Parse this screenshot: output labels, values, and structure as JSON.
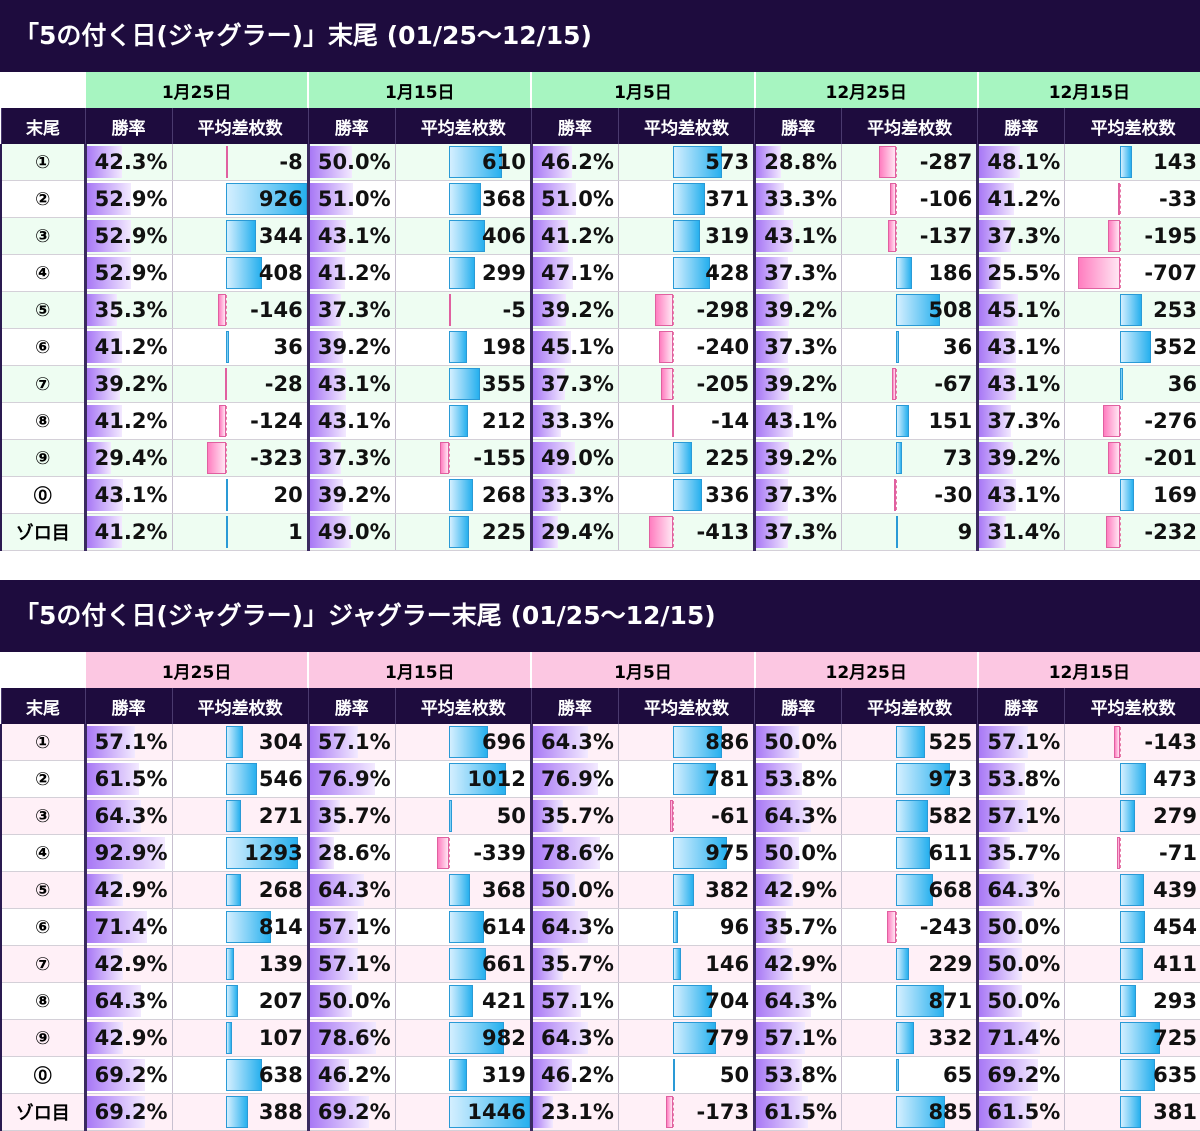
{
  "header_col": "末尾",
  "sub_headers": {
    "win": "勝率",
    "diff": "平均差枚数"
  },
  "rows": [
    "①",
    "②",
    "③",
    "④",
    "⑤",
    "⑥",
    "⑦",
    "⑧",
    "⑨",
    "⓪",
    "ゾロ目"
  ],
  "dates": [
    "1月25日",
    "1月15日",
    "1月5日",
    "12月25日",
    "12月15日"
  ],
  "colors": {
    "title_bg": "#1e0c3e",
    "date_green": "#a7f5c1",
    "date_pink": "#fcc7e2",
    "win_bar": "#a878f5",
    "pos_bar": "#27b0ee",
    "neg_bar": "#ff7ec0"
  },
  "tables": [
    {
      "title": "「5の付く日(ジャグラー)」末尾 (01/25～12/15)",
      "max_diff": 926,
      "data": [
        [
          [
            "42.3%",
            -8
          ],
          [
            "50.0%",
            610
          ],
          [
            "46.2%",
            573
          ],
          [
            "28.8%",
            -287
          ],
          [
            "48.1%",
            143
          ]
        ],
        [
          [
            "52.9%",
            926
          ],
          [
            "51.0%",
            368
          ],
          [
            "51.0%",
            371
          ],
          [
            "33.3%",
            -106
          ],
          [
            "41.2%",
            -33
          ]
        ],
        [
          [
            "52.9%",
            344
          ],
          [
            "43.1%",
            406
          ],
          [
            "41.2%",
            319
          ],
          [
            "43.1%",
            -137
          ],
          [
            "37.3%",
            -195
          ]
        ],
        [
          [
            "52.9%",
            408
          ],
          [
            "41.2%",
            299
          ],
          [
            "47.1%",
            428
          ],
          [
            "37.3%",
            186
          ],
          [
            "25.5%",
            -707
          ]
        ],
        [
          [
            "35.3%",
            -146
          ],
          [
            "37.3%",
            -5
          ],
          [
            "39.2%",
            -298
          ],
          [
            "39.2%",
            508
          ],
          [
            "45.1%",
            253
          ]
        ],
        [
          [
            "41.2%",
            36
          ],
          [
            "39.2%",
            198
          ],
          [
            "45.1%",
            -240
          ],
          [
            "37.3%",
            36
          ],
          [
            "43.1%",
            352
          ]
        ],
        [
          [
            "39.2%",
            -28
          ],
          [
            "43.1%",
            355
          ],
          [
            "37.3%",
            -205
          ],
          [
            "39.2%",
            -67
          ],
          [
            "43.1%",
            36
          ]
        ],
        [
          [
            "41.2%",
            -124
          ],
          [
            "43.1%",
            212
          ],
          [
            "33.3%",
            -14
          ],
          [
            "43.1%",
            151
          ],
          [
            "37.3%",
            -276
          ]
        ],
        [
          [
            "29.4%",
            -323
          ],
          [
            "37.3%",
            -155
          ],
          [
            "49.0%",
            225
          ],
          [
            "39.2%",
            73
          ],
          [
            "39.2%",
            -201
          ]
        ],
        [
          [
            "43.1%",
            20
          ],
          [
            "39.2%",
            268
          ],
          [
            "33.3%",
            336
          ],
          [
            "37.3%",
            -30
          ],
          [
            "43.1%",
            169
          ]
        ],
        [
          [
            "41.2%",
            1
          ],
          [
            "49.0%",
            225
          ],
          [
            "29.4%",
            -413
          ],
          [
            "37.3%",
            9
          ],
          [
            "31.4%",
            -232
          ]
        ]
      ]
    },
    {
      "title": "「5の付く日(ジャグラー)」ジャグラー末尾 (01/25～12/15)",
      "max_diff": 1446,
      "data": [
        [
          [
            "57.1%",
            304
          ],
          [
            "57.1%",
            696
          ],
          [
            "64.3%",
            886
          ],
          [
            "50.0%",
            525
          ],
          [
            "57.1%",
            -143
          ]
        ],
        [
          [
            "61.5%",
            546
          ],
          [
            "76.9%",
            1012
          ],
          [
            "76.9%",
            781
          ],
          [
            "53.8%",
            973
          ],
          [
            "53.8%",
            473
          ]
        ],
        [
          [
            "64.3%",
            271
          ],
          [
            "35.7%",
            50
          ],
          [
            "35.7%",
            -61
          ],
          [
            "64.3%",
            582
          ],
          [
            "57.1%",
            279
          ]
        ],
        [
          [
            "92.9%",
            1293
          ],
          [
            "28.6%",
            -339
          ],
          [
            "78.6%",
            975
          ],
          [
            "50.0%",
            611
          ],
          [
            "35.7%",
            -71
          ]
        ],
        [
          [
            "42.9%",
            268
          ],
          [
            "64.3%",
            368
          ],
          [
            "50.0%",
            382
          ],
          [
            "42.9%",
            668
          ],
          [
            "64.3%",
            439
          ]
        ],
        [
          [
            "71.4%",
            814
          ],
          [
            "57.1%",
            614
          ],
          [
            "64.3%",
            96
          ],
          [
            "35.7%",
            -243
          ],
          [
            "50.0%",
            454
          ]
        ],
        [
          [
            "42.9%",
            139
          ],
          [
            "57.1%",
            661
          ],
          [
            "35.7%",
            146
          ],
          [
            "42.9%",
            229
          ],
          [
            "50.0%",
            411
          ]
        ],
        [
          [
            "64.3%",
            207
          ],
          [
            "50.0%",
            421
          ],
          [
            "57.1%",
            704
          ],
          [
            "64.3%",
            871
          ],
          [
            "50.0%",
            293
          ]
        ],
        [
          [
            "42.9%",
            107
          ],
          [
            "78.6%",
            982
          ],
          [
            "64.3%",
            779
          ],
          [
            "57.1%",
            332
          ],
          [
            "71.4%",
            725
          ]
        ],
        [
          [
            "69.2%",
            638
          ],
          [
            "46.2%",
            319
          ],
          [
            "46.2%",
            50
          ],
          [
            "53.8%",
            65
          ],
          [
            "69.2%",
            635
          ]
        ],
        [
          [
            "69.2%",
            388
          ],
          [
            "69.2%",
            1446
          ],
          [
            "23.1%",
            -173
          ],
          [
            "61.5%",
            885
          ],
          [
            "61.5%",
            381
          ]
        ]
      ]
    }
  ]
}
